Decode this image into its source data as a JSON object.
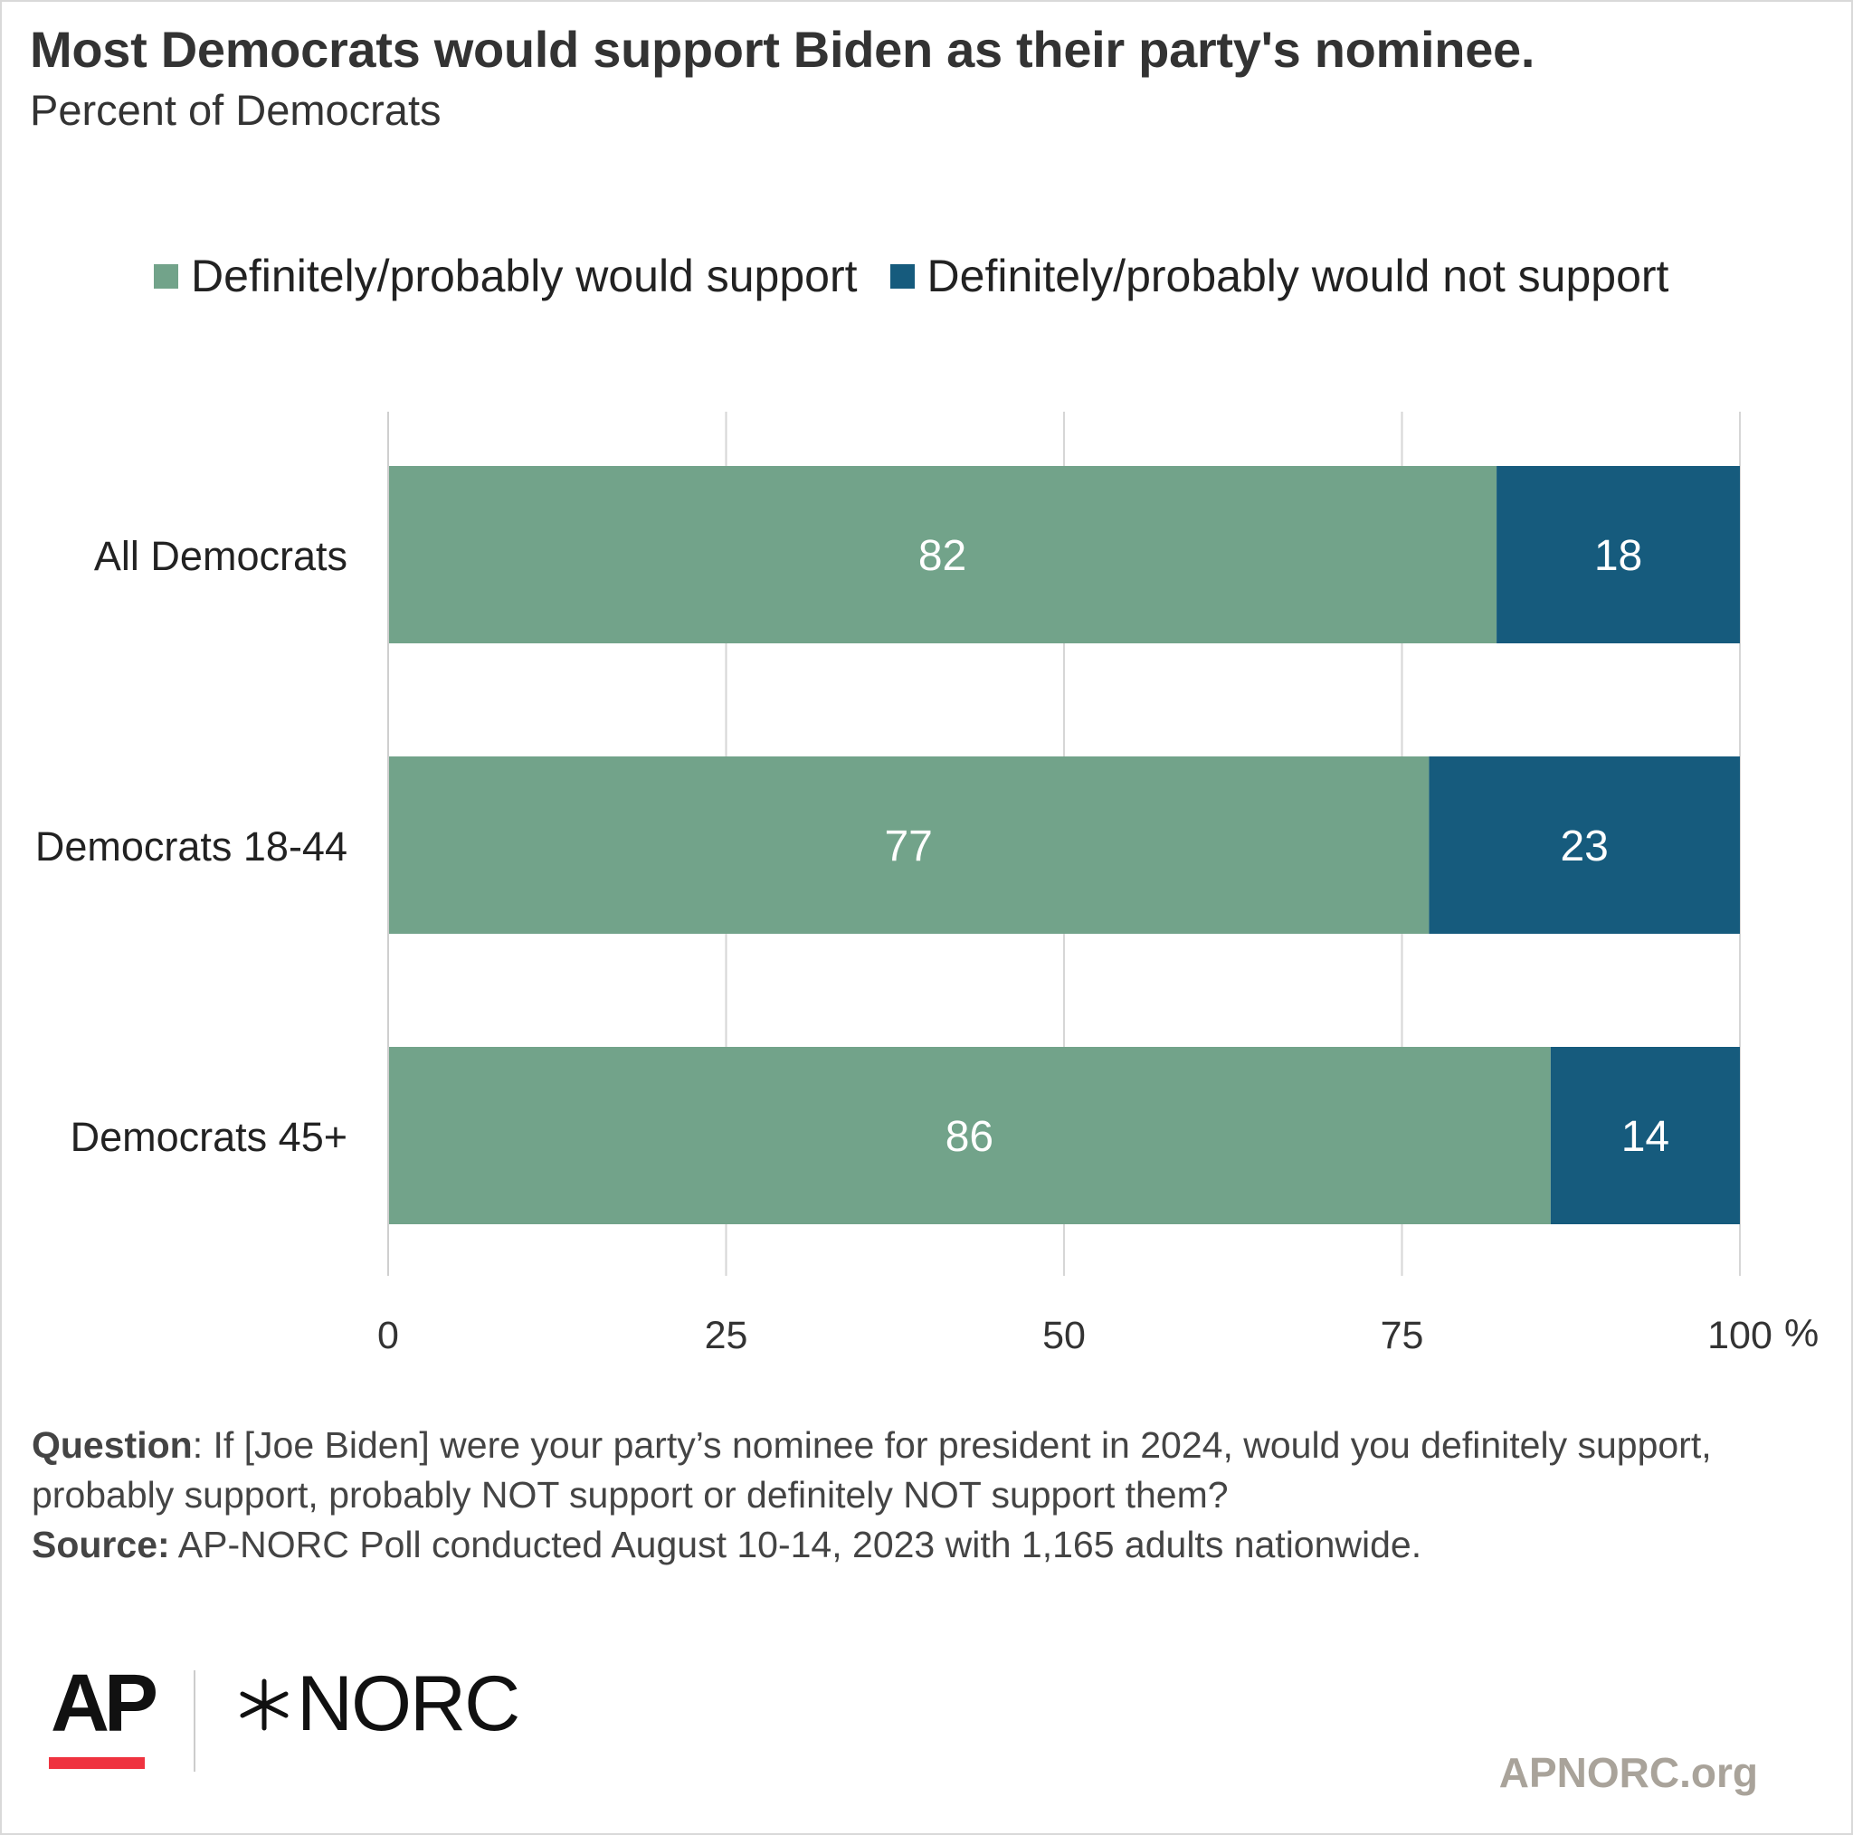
{
  "title": "Most Democrats would support Biden as their party's nominee.",
  "subtitle": "Percent of Democrats",
  "legend": [
    {
      "label": "Definitely/probably would support",
      "color": "#72a38a"
    },
    {
      "label": "Definitely/probably would not support",
      "color": "#165b7d"
    }
  ],
  "chart_data": {
    "type": "bar",
    "orientation": "horizontal",
    "stacked": true,
    "categories": [
      "All Democrats",
      "Democrats 18-44",
      "Democrats 45+"
    ],
    "series": [
      {
        "name": "Definitely/probably would support",
        "values": [
          82,
          77,
          86
        ],
        "color": "#72a38a"
      },
      {
        "name": "Definitely/probably would not support",
        "values": [
          18,
          23,
          14
        ],
        "color": "#165b7d"
      }
    ],
    "xlim": [
      0,
      100
    ],
    "xticks": [
      0,
      25,
      50,
      75,
      100
    ],
    "xtick_labels": [
      "0",
      "25",
      "50",
      "75",
      "100"
    ],
    "x_unit": "%",
    "grid": true,
    "legend_position": "top"
  },
  "footnote": {
    "question_label": "Question",
    "question_text": ": If [Joe Biden] were your party’s nominee for president in 2024, would you definitely support, probably support, probably NOT support or definitely NOT support them?",
    "source_label": "Source:",
    "source_text": " AP-NORC Poll conducted August 10-14, 2023 with 1,165 adults nationwide."
  },
  "logos": {
    "ap": "AP",
    "norc": "NORC"
  },
  "site": "APNORC.org"
}
